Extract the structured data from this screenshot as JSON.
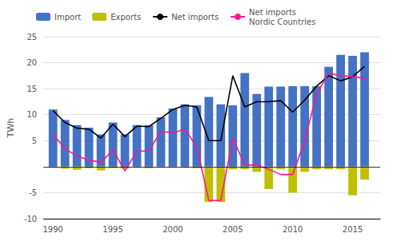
{
  "chart_data": {
    "type": "bar",
    "x": [
      1990,
      1991,
      1992,
      1993,
      1994,
      1995,
      1996,
      1997,
      1998,
      1999,
      2000,
      2001,
      2002,
      2003,
      2004,
      2005,
      2006,
      2007,
      2008,
      2009,
      2010,
      2011,
      2012,
      2013,
      2014,
      2015,
      2016
    ],
    "series": [
      {
        "name": "Import",
        "type": "bar",
        "color": "#4472C4",
        "values": [
          11.0,
          9.0,
          8.0,
          7.5,
          6.2,
          8.5,
          6.2,
          8.0,
          8.0,
          9.5,
          11.2,
          12.0,
          11.8,
          13.4,
          12.0,
          11.8,
          18.0,
          14.0,
          15.4,
          15.4,
          15.5,
          15.5,
          15.5,
          19.2,
          21.5,
          21.3,
          22.0
        ]
      },
      {
        "name": "Exports",
        "type": "bar",
        "color": "#bfbf00",
        "values": [
          -0.2,
          -0.4,
          -0.6,
          -0.3,
          -0.7,
          -0.3,
          -0.4,
          -0.2,
          -0.3,
          -0.2,
          -0.2,
          -0.2,
          -0.3,
          -6.8,
          -6.8,
          -0.5,
          -0.5,
          -1.0,
          -4.3,
          -0.5,
          -5.0,
          -1.0,
          -0.5,
          -0.5,
          -0.5,
          -5.5,
          -2.5
        ]
      },
      {
        "name": "Net imports",
        "type": "line",
        "color": "#000000",
        "values": [
          10.8,
          8.5,
          7.4,
          7.2,
          5.5,
          8.2,
          5.8,
          7.8,
          7.7,
          9.3,
          11.0,
          11.8,
          11.5,
          5.0,
          5.0,
          17.5,
          11.5,
          12.5,
          12.5,
          12.7,
          10.5,
          12.8,
          15.5,
          17.5,
          16.5,
          17.3,
          19.3
        ]
      },
      {
        "name": "Net imports\nNordic Countries",
        "type": "line",
        "color": "#FF1493",
        "values": [
          6.2,
          3.5,
          2.0,
          1.3,
          0.8,
          3.2,
          -0.8,
          3.0,
          3.0,
          6.8,
          6.5,
          7.2,
          3.8,
          -6.5,
          -6.5,
          5.5,
          0.3,
          0.3,
          -0.5,
          -1.5,
          -1.5,
          5.0,
          14.0,
          18.0,
          17.5,
          17.3,
          17.0
        ]
      }
    ],
    "ylabel": "TWh",
    "xlim": [
      1989.2,
      2017.3
    ],
    "xticks": [
      1990,
      1995,
      2000,
      2005,
      2010,
      2015
    ],
    "ylim": [
      -10,
      25
    ],
    "yticks": [
      -10,
      -5,
      5,
      10,
      15,
      20,
      25
    ],
    "grid": true,
    "legend": "upper left"
  }
}
